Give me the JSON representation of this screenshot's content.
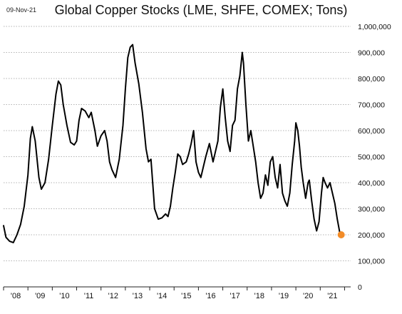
{
  "header": {
    "date_stamp": "09-Nov-21",
    "title": "Global Copper Stocks (LME, SHFE, COMEX; Tons)"
  },
  "chart_data": {
    "type": "line",
    "title": "Global Copper Stocks (LME, SHFE, COMEX; Tons)",
    "xlabel": "",
    "ylabel": "",
    "xlim": [
      2008.0,
      2022.25
    ],
    "ylim": [
      0,
      1000000
    ],
    "grid": "horizontal dotted",
    "legend": "none",
    "line_color": "#000000",
    "marker_color": "#f28c28",
    "y_ticks": [
      {
        "value": 0,
        "label": "0"
      },
      {
        "value": 100000,
        "label": "100,000"
      },
      {
        "value": 200000,
        "label": "200,000"
      },
      {
        "value": 300000,
        "label": "300,000"
      },
      {
        "value": 400000,
        "label": "400,000"
      },
      {
        "value": 500000,
        "label": "500,000"
      },
      {
        "value": 600000,
        "label": "600,000"
      },
      {
        "value": 700000,
        "label": "700,000"
      },
      {
        "value": 800000,
        "label": "800,000"
      },
      {
        "value": 900000,
        "label": "900,000"
      },
      {
        "value": 1000000,
        "label": "1,000,000"
      }
    ],
    "x_ticks": [
      {
        "value": 2008.5,
        "label": "'08"
      },
      {
        "value": 2009.5,
        "label": "'09"
      },
      {
        "value": 2010.5,
        "label": "'10"
      },
      {
        "value": 2011.5,
        "label": "'11"
      },
      {
        "value": 2012.5,
        "label": "'12"
      },
      {
        "value": 2013.5,
        "label": "'13"
      },
      {
        "value": 2014.5,
        "label": "'14"
      },
      {
        "value": 2015.5,
        "label": "'15"
      },
      {
        "value": 2016.5,
        "label": "'16"
      },
      {
        "value": 2017.5,
        "label": "'17"
      },
      {
        "value": 2018.5,
        "label": "'18"
      },
      {
        "value": 2019.5,
        "label": "'19"
      },
      {
        "value": 2020.5,
        "label": "'20"
      },
      {
        "value": 2021.5,
        "label": "'21"
      }
    ],
    "series": [
      {
        "points": [
          [
            2008.0,
            235000
          ],
          [
            2008.1,
            190000
          ],
          [
            2008.25,
            175000
          ],
          [
            2008.4,
            170000
          ],
          [
            2008.55,
            200000
          ],
          [
            2008.7,
            240000
          ],
          [
            2008.85,
            310000
          ],
          [
            2009.0,
            430000
          ],
          [
            2009.1,
            570000
          ],
          [
            2009.18,
            615000
          ],
          [
            2009.3,
            560000
          ],
          [
            2009.45,
            420000
          ],
          [
            2009.55,
            375000
          ],
          [
            2009.7,
            400000
          ],
          [
            2009.85,
            490000
          ],
          [
            2010.0,
            620000
          ],
          [
            2010.15,
            740000
          ],
          [
            2010.25,
            790000
          ],
          [
            2010.35,
            775000
          ],
          [
            2010.45,
            700000
          ],
          [
            2010.6,
            620000
          ],
          [
            2010.75,
            555000
          ],
          [
            2010.9,
            545000
          ],
          [
            2011.0,
            560000
          ],
          [
            2011.1,
            640000
          ],
          [
            2011.2,
            685000
          ],
          [
            2011.35,
            675000
          ],
          [
            2011.5,
            650000
          ],
          [
            2011.6,
            670000
          ],
          [
            2011.75,
            600000
          ],
          [
            2011.85,
            540000
          ],
          [
            2012.0,
            580000
          ],
          [
            2012.15,
            600000
          ],
          [
            2012.25,
            560000
          ],
          [
            2012.35,
            480000
          ],
          [
            2012.45,
            450000
          ],
          [
            2012.6,
            420000
          ],
          [
            2012.75,
            490000
          ],
          [
            2012.9,
            620000
          ],
          [
            2013.0,
            760000
          ],
          [
            2013.1,
            880000
          ],
          [
            2013.2,
            920000
          ],
          [
            2013.3,
            930000
          ],
          [
            2013.4,
            860000
          ],
          [
            2013.55,
            780000
          ],
          [
            2013.7,
            670000
          ],
          [
            2013.85,
            530000
          ],
          [
            2013.95,
            480000
          ],
          [
            2014.05,
            490000
          ],
          [
            2014.2,
            300000
          ],
          [
            2014.35,
            260000
          ],
          [
            2014.5,
            265000
          ],
          [
            2014.65,
            280000
          ],
          [
            2014.75,
            270000
          ],
          [
            2014.85,
            310000
          ],
          [
            2014.95,
            380000
          ],
          [
            2015.05,
            440000
          ],
          [
            2015.15,
            510000
          ],
          [
            2015.25,
            500000
          ],
          [
            2015.35,
            470000
          ],
          [
            2015.5,
            480000
          ],
          [
            2015.6,
            510000
          ],
          [
            2015.7,
            550000
          ],
          [
            2015.8,
            600000
          ],
          [
            2015.9,
            480000
          ],
          [
            2016.0,
            440000
          ],
          [
            2016.1,
            420000
          ],
          [
            2016.2,
            460000
          ],
          [
            2016.3,
            500000
          ],
          [
            2016.45,
            550000
          ],
          [
            2016.6,
            480000
          ],
          [
            2016.7,
            520000
          ],
          [
            2016.8,
            560000
          ],
          [
            2016.9,
            690000
          ],
          [
            2017.0,
            760000
          ],
          [
            2017.1,
            650000
          ],
          [
            2017.2,
            560000
          ],
          [
            2017.3,
            520000
          ],
          [
            2017.4,
            620000
          ],
          [
            2017.5,
            640000
          ],
          [
            2017.6,
            760000
          ],
          [
            2017.7,
            810000
          ],
          [
            2017.8,
            900000
          ],
          [
            2017.85,
            860000
          ],
          [
            2017.95,
            700000
          ],
          [
            2018.05,
            560000
          ],
          [
            2018.15,
            600000
          ],
          [
            2018.25,
            540000
          ],
          [
            2018.35,
            480000
          ],
          [
            2018.45,
            400000
          ],
          [
            2018.55,
            340000
          ],
          [
            2018.65,
            360000
          ],
          [
            2018.75,
            430000
          ],
          [
            2018.85,
            390000
          ],
          [
            2018.95,
            480000
          ],
          [
            2019.05,
            500000
          ],
          [
            2019.15,
            420000
          ],
          [
            2019.25,
            380000
          ],
          [
            2019.35,
            470000
          ],
          [
            2019.45,
            360000
          ],
          [
            2019.55,
            330000
          ],
          [
            2019.65,
            310000
          ],
          [
            2019.75,
            360000
          ],
          [
            2019.85,
            470000
          ],
          [
            2019.95,
            560000
          ],
          [
            2020.0,
            630000
          ],
          [
            2020.08,
            600000
          ],
          [
            2020.15,
            540000
          ],
          [
            2020.22,
            460000
          ],
          [
            2020.3,
            400000
          ],
          [
            2020.4,
            340000
          ],
          [
            2020.5,
            400000
          ],
          [
            2020.55,
            410000
          ],
          [
            2020.65,
            330000
          ],
          [
            2020.75,
            260000
          ],
          [
            2020.85,
            215000
          ],
          [
            2020.95,
            250000
          ],
          [
            2021.05,
            360000
          ],
          [
            2021.12,
            420000
          ],
          [
            2021.2,
            400000
          ],
          [
            2021.3,
            380000
          ],
          [
            2021.4,
            400000
          ],
          [
            2021.5,
            360000
          ],
          [
            2021.6,
            320000
          ],
          [
            2021.7,
            260000
          ],
          [
            2021.8,
            210000
          ],
          [
            2021.86,
            200000
          ]
        ]
      }
    ],
    "last_point": {
      "x": 2021.86,
      "y": 200000
    }
  }
}
